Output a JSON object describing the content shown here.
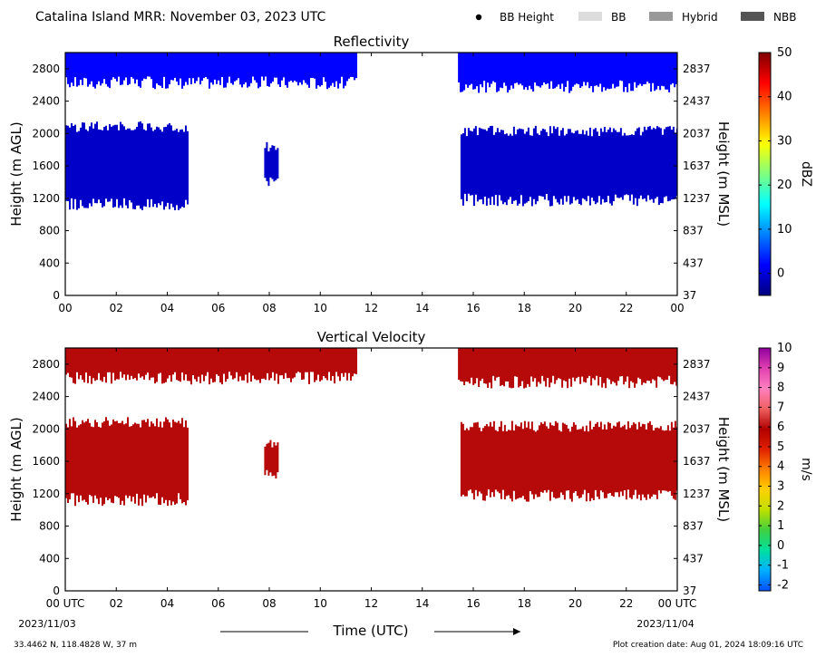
{
  "header": {
    "title": "Catalina Island MRR:  November 03, 2023 UTC",
    "legend": [
      {
        "label": "BB Height",
        "marker": "dot",
        "color": "#000000"
      },
      {
        "label": "BB",
        "marker": "box",
        "color": "#dcdcdc"
      },
      {
        "label": "Hybrid",
        "marker": "box",
        "color": "#999999"
      },
      {
        "label": "NBB",
        "marker": "box",
        "color": "#555555"
      }
    ]
  },
  "footer": {
    "location": "33.4462 N, 118.4828 W, 37 m",
    "creation": "Plot creation date: Aug 01, 2024 18:09:16 UTC",
    "xlabel": "Time (UTC)",
    "start_date": "2023/11/03",
    "end_date": "2023/11/04"
  },
  "chart_data": [
    {
      "type": "heatmap",
      "title": "Reflectivity",
      "ylabel": "Height (m AGL)",
      "ylabel_right": "Height (m MSL)",
      "xlim": [
        0,
        24
      ],
      "ylim": [
        0,
        3000
      ],
      "x_ticks": [
        "00",
        "02",
        "04",
        "06",
        "08",
        "10",
        "12",
        "14",
        "16",
        "18",
        "20",
        "22",
        "00"
      ],
      "y_ticks": [
        0,
        400,
        800,
        1200,
        1600,
        2000,
        2400,
        2800
      ],
      "y_ticks_right": [
        37,
        437,
        837,
        1237,
        1637,
        2037,
        2437,
        2837
      ],
      "colorbar": {
        "label": "dBZ",
        "min": -5,
        "max": 50,
        "ticks": [
          0,
          10,
          20,
          30,
          40,
          50
        ],
        "colors": [
          "#00007f",
          "#0000ff",
          "#007fff",
          "#00ffff",
          "#7fff7f",
          "#ffff00",
          "#ff7f00",
          "#ff0000",
          "#7f0000"
        ]
      },
      "regions": [
        {
          "x": [
            0,
            11.4
          ],
          "y": [
            2550,
            3000
          ],
          "value": 2
        },
        {
          "x": [
            15.4,
            24
          ],
          "y": [
            2500,
            3000
          ],
          "value": 2
        },
        {
          "x": [
            0,
            4.8
          ],
          "y": [
            1050,
            2150
          ],
          "value": -1
        },
        {
          "x": [
            7.8,
            8.3
          ],
          "y": [
            1350,
            1900
          ],
          "value": -1
        },
        {
          "x": [
            15.5,
            24
          ],
          "y": [
            1100,
            2100
          ],
          "value": -1
        }
      ]
    },
    {
      "type": "heatmap",
      "title": "Vertical Velocity",
      "ylabel": "Height (m AGL)",
      "ylabel_right": "Height (m MSL)",
      "xlim": [
        0,
        24
      ],
      "ylim": [
        0,
        3000
      ],
      "x_ticks": [
        "00 UTC",
        "02",
        "04",
        "06",
        "08",
        "10",
        "12",
        "14",
        "16",
        "18",
        "20",
        "22",
        "00 UTC"
      ],
      "y_ticks": [
        0,
        400,
        800,
        1200,
        1600,
        2000,
        2400,
        2800
      ],
      "y_ticks_right": [
        37,
        437,
        837,
        1237,
        1637,
        2037,
        2437,
        2837
      ],
      "colorbar": {
        "label": "m/s",
        "min": -2.3,
        "max": 10,
        "ticks": [
          -2,
          -1,
          0,
          1,
          2,
          3,
          4,
          5,
          6,
          7,
          8,
          9,
          10
        ],
        "colors": [
          "#0050ff",
          "#00b0ff",
          "#00e0a0",
          "#40d040",
          "#c0e000",
          "#ffd000",
          "#ff8000",
          "#e02000",
          "#b00000",
          "#f06060",
          "#ff80c0",
          "#e040b0",
          "#9000a0"
        ]
      },
      "regions": [
        {
          "x": [
            0,
            11.4
          ],
          "y": [
            2550,
            3000
          ],
          "value": 6
        },
        {
          "x": [
            15.4,
            24
          ],
          "y": [
            2500,
            3000
          ],
          "value": 6
        },
        {
          "x": [
            0,
            4.8
          ],
          "y": [
            1050,
            2150
          ],
          "value": 6
        },
        {
          "x": [
            7.8,
            8.3
          ],
          "y": [
            1350,
            1900
          ],
          "value": 6
        },
        {
          "x": [
            15.5,
            24
          ],
          "y": [
            1100,
            2100
          ],
          "value": 6
        }
      ]
    }
  ]
}
